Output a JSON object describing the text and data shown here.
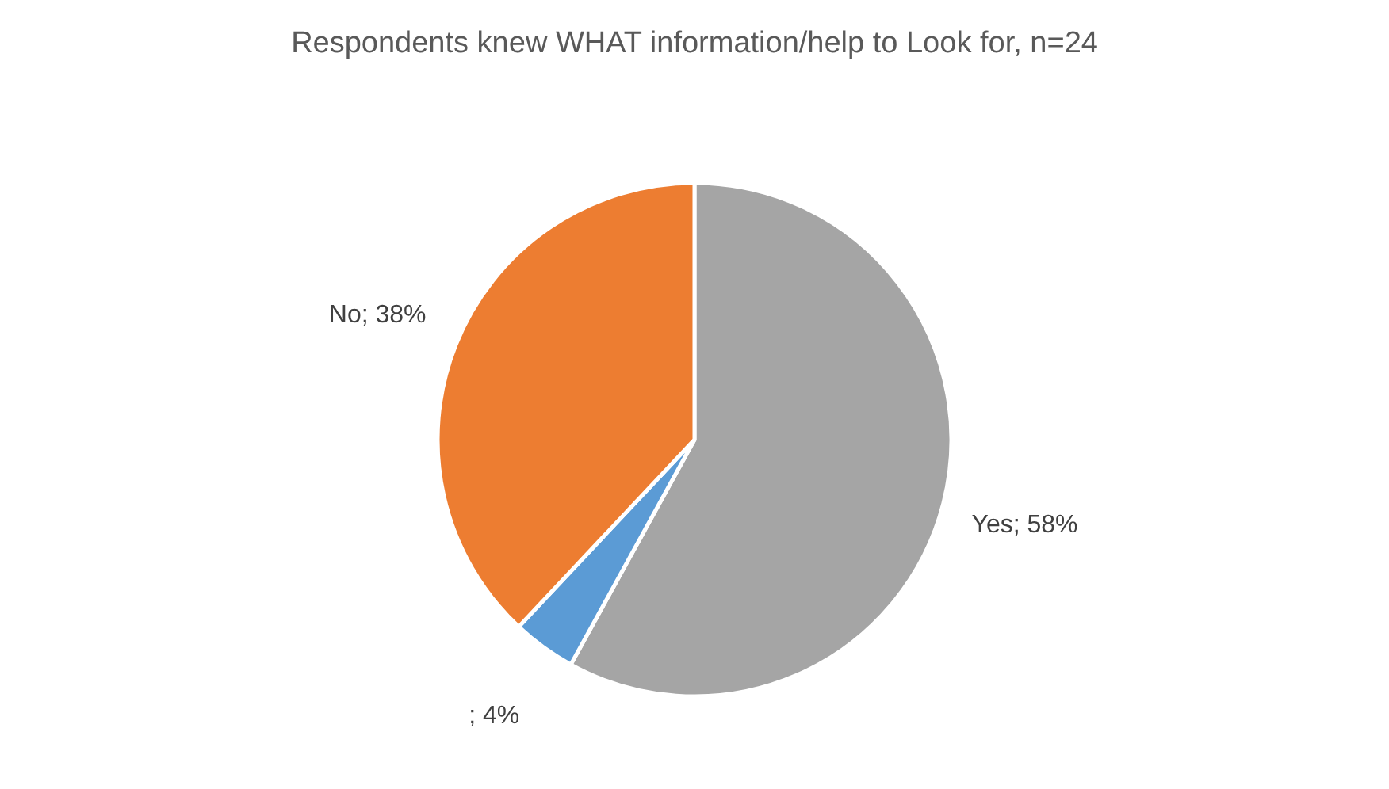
{
  "chart_data": {
    "type": "pie",
    "title": "Respondents knew WHAT information/help to Look for, n=24",
    "categories": [
      "Yes",
      null,
      "No"
    ],
    "values": [
      58,
      4,
      38
    ],
    "colors": [
      "#a5a5a5",
      "#5b9bd5",
      "#ed7d31"
    ],
    "value_labels": [
      "; 58%",
      "; 4%",
      "; 38%"
    ],
    "legend": false
  }
}
